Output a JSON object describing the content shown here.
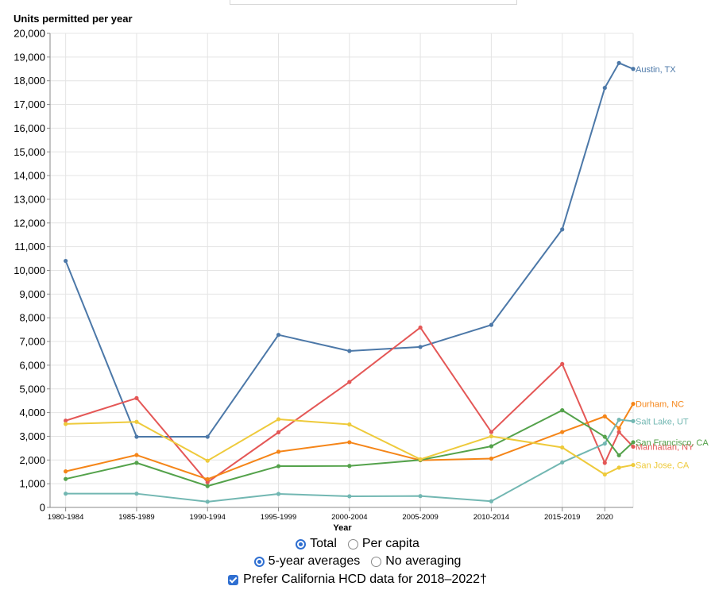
{
  "chart_data": {
    "type": "line",
    "title": "Units permitted per year",
    "xlabel": "Year",
    "ylabel": "Units permitted per year",
    "ylim": [
      0,
      20000
    ],
    "yticks": [
      0,
      1000,
      2000,
      3000,
      4000,
      5000,
      6000,
      7000,
      8000,
      9000,
      10000,
      11000,
      12000,
      13000,
      14000,
      15000,
      16000,
      17000,
      18000,
      19000,
      20000
    ],
    "ytick_labels": [
      "0",
      "1,000",
      "2,000",
      "3,000",
      "4,000",
      "5,000",
      "6,000",
      "7,000",
      "8,000",
      "9,000",
      "10,000",
      "11,000",
      "12,000",
      "13,000",
      "14,000",
      "15,000",
      "16,000",
      "17,000",
      "18,000",
      "19,000",
      "20,000"
    ],
    "x": [
      1982,
      1987,
      1992,
      1997,
      2002,
      2007,
      2012,
      2017,
      2020,
      2021,
      2022
    ],
    "xlim": [
      1980.9,
      2022.0
    ],
    "xticks": [
      {
        "x": 1982,
        "label": "1980-1984"
      },
      {
        "x": 1987,
        "label": "1985-1989"
      },
      {
        "x": 1992,
        "label": "1990-1994"
      },
      {
        "x": 1997,
        "label": "1995-1999"
      },
      {
        "x": 2002,
        "label": "2000-2004"
      },
      {
        "x": 2007,
        "label": "2005-2009"
      },
      {
        "x": 2012,
        "label": "2010-2014"
      },
      {
        "x": 2017,
        "label": "2015-2019"
      },
      {
        "x": 2020,
        "label": "2020"
      }
    ],
    "grid": true,
    "series": [
      {
        "name": "Austin, TX",
        "color": "#4c78a8",
        "values": [
          10400,
          2980,
          2980,
          7280,
          6600,
          6770,
          7700,
          11730,
          17700,
          18750,
          18500
        ]
      },
      {
        "name": "Manhattan, NY",
        "color": "#e45756",
        "values": [
          3660,
          4610,
          1060,
          3170,
          5290,
          7590,
          3180,
          6050,
          1880,
          3180,
          2560
        ]
      },
      {
        "name": "Durham, NC",
        "color": "#f58518",
        "values": [
          1520,
          2210,
          1190,
          2350,
          2750,
          1990,
          2060,
          3180,
          3840,
          3340,
          4370
        ]
      },
      {
        "name": "Salt Lake, UT",
        "color": "#72b7b2",
        "values": [
          580,
          580,
          240,
          570,
          470,
          480,
          260,
          1900,
          2690,
          3700,
          3640
        ]
      },
      {
        "name": "San Francisco, CA",
        "color": "#54a24b",
        "values": [
          1200,
          1880,
          900,
          1740,
          1750,
          2000,
          2580,
          4100,
          2980,
          2200,
          2750
        ]
      },
      {
        "name": "San Jose, CA",
        "color": "#eeca3b",
        "values": [
          3520,
          3610,
          1970,
          3720,
          3500,
          2030,
          3000,
          2530,
          1390,
          1680,
          1790
        ]
      }
    ]
  },
  "controls": {
    "metric_total_label": "Total",
    "metric_per_capita_label": "Per capita",
    "avg_5yr_label": "5-year averages",
    "avg_none_label": "No averaging",
    "prefer_hcd_label": "Prefer California HCD data for 2018–2022†"
  }
}
